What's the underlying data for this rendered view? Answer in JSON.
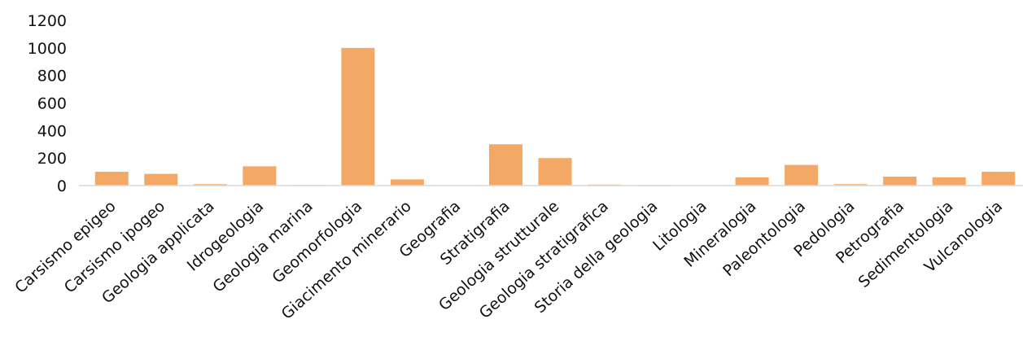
{
  "chart_data": {
    "type": "bar",
    "title": "",
    "xlabel": "",
    "ylabel": "",
    "ylim": [
      0,
      1200
    ],
    "yticks": [
      0,
      200,
      400,
      600,
      800,
      1000,
      1200
    ],
    "grid": false,
    "legend": "none",
    "colors": {
      "bar": "#f4a866",
      "axis": "#d9d9d9",
      "text": "#111111"
    },
    "categories": [
      "Carsismo epigeo",
      "Carsismo ipogeo",
      "Geologia applicata",
      "Idrogeologia",
      "Geologia marina",
      "Geomorfologia",
      "Giacimento minerario",
      "Geografia",
      "Stratigrafia",
      "Geologia strutturale",
      "Geologia stratigrafica",
      "Storia della geologia",
      "Litologia",
      "Mineralogia",
      "Paleontologia",
      "Pedologia",
      "Petrografia",
      "Sedimentologia",
      "Vulcanologia"
    ],
    "values": [
      100,
      85,
      10,
      140,
      5,
      1000,
      45,
      3,
      300,
      200,
      7,
      4,
      2,
      60,
      150,
      10,
      65,
      60,
      100
    ]
  }
}
